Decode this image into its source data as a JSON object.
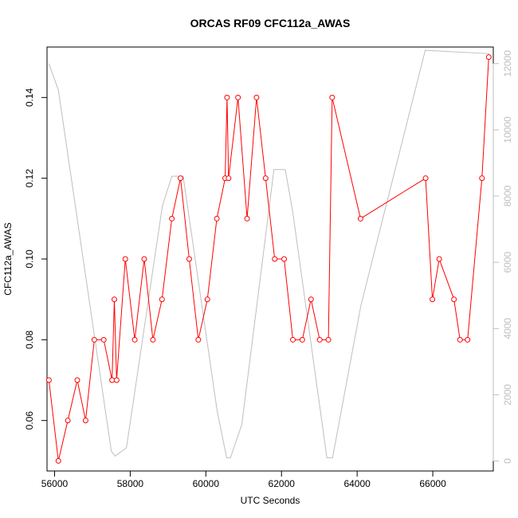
{
  "chart_data": {
    "type": "line",
    "title": "ORCAS RF09 CFC112a_AWAS",
    "xlabel": "UTC Seconds",
    "ylabel": "CFC112a_AWAS",
    "xlim": [
      55800,
      67600
    ],
    "ylim": [
      0.0475,
      0.1525
    ],
    "y2lim": [
      -300,
      12500
    ],
    "x_ticks": [
      56000,
      58000,
      60000,
      62000,
      64000,
      66000
    ],
    "y_ticks": [
      0.06,
      0.08,
      0.1,
      0.12,
      0.14
    ],
    "y_tick_labels": [
      "0.06",
      "0.08",
      "0.10",
      "0.12",
      "0.14"
    ],
    "y2_ticks": [
      0,
      2000,
      4000,
      6000,
      8000,
      10000,
      12000
    ],
    "grid": false,
    "series": [
      {
        "color": "#ff0000",
        "marker": "open-circle",
        "x": [
          55850,
          56100,
          56350,
          56600,
          56820,
          57050,
          57300,
          57520,
          57580,
          57640,
          57870,
          58120,
          58370,
          58600,
          58840,
          59100,
          59330,
          59560,
          59800,
          60040,
          60290,
          60510,
          60560,
          60600,
          60850,
          61090,
          61340,
          61580,
          61820,
          62070,
          62300,
          62550,
          62780,
          63010,
          63240,
          63340,
          64090,
          65810,
          65990,
          66170,
          66560,
          66720,
          66920,
          67300,
          67480
        ],
        "y": [
          0.07,
          0.05,
          0.06,
          0.07,
          0.06,
          0.08,
          0.08,
          0.07,
          0.09,
          0.07,
          0.1,
          0.08,
          0.1,
          0.08,
          0.09,
          0.11,
          0.12,
          0.1,
          0.08,
          0.09,
          0.11,
          0.12,
          0.14,
          0.12,
          0.14,
          0.11,
          0.14,
          0.12,
          0.1,
          0.1,
          0.08,
          0.08,
          0.09,
          0.08,
          0.08,
          0.14,
          0.11,
          0.12,
          0.09,
          0.1,
          0.09,
          0.08,
          0.08,
          0.12,
          0.15
        ]
      },
      {
        "color": "#bebebe",
        "axis": "right",
        "x": [
          55850,
          56100,
          57500,
          57600,
          57900,
          58850,
          59100,
          59400,
          60300,
          60550,
          60650,
          60950,
          61800,
          62100,
          62300,
          63200,
          63350,
          64100,
          65800,
          67500
        ],
        "y": [
          12000,
          11200,
          300,
          150,
          400,
          7700,
          8600,
          8600,
          1500,
          100,
          100,
          1100,
          8800,
          8800,
          7500,
          100,
          100,
          4700,
          12400,
          12300
        ]
      }
    ]
  }
}
